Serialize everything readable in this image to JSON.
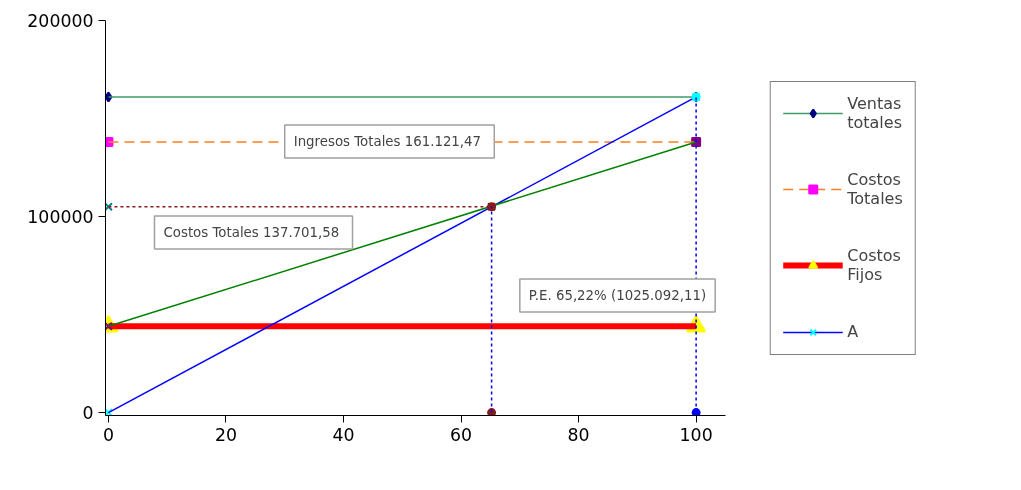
{
  "chart_data": {
    "type": "line",
    "xlim": [
      -0.5,
      105
    ],
    "ylim": [
      -1500,
      200000
    ],
    "xticks": [
      0,
      20,
      40,
      60,
      80,
      100
    ],
    "yticks": [
      0,
      100000,
      200000
    ],
    "grid": false,
    "legend": "right",
    "series": [
      {
        "name": "Ventas totales",
        "color": "#3c9c6c",
        "x": [
          0,
          100
        ],
        "values": [
          161000,
          161000
        ],
        "marker": "diamond",
        "colors": [
          "#000080",
          "#000080"
        ]
      },
      {
        "name": "Costos Totales",
        "color": "#ff8020",
        "x": [
          0,
          100
        ],
        "values": [
          138000,
          138000
        ],
        "marker": "square",
        "line_style": "dashed",
        "colors": [
          "#ff00ff",
          "#800080"
        ]
      },
      {
        "name": "Costos Fijos",
        "color": "#ff0000",
        "x": [
          0,
          100
        ],
        "values": [
          44000,
          44000
        ],
        "marker": "triangle",
        "colors": [
          "#ffff00",
          "#ffff00"
        ]
      },
      {
        "name": "A",
        "color": "#0000ff",
        "x": [
          0,
          100
        ],
        "values": [
          0,
          161000
        ],
        "marker": "cross",
        "colors": [
          "#00ffff",
          "#00ffff"
        ]
      },
      {
        "color": "#008000",
        "x": [
          0,
          100
        ],
        "values": [
          44000,
          138000
        ],
        "marker": "cross",
        "colors": [
          "#800080",
          "#800080"
        ]
      },
      {
        "color": "#8b1a1a",
        "x": [
          0,
          65.2
        ],
        "values": [
          105000,
          105000
        ],
        "marker": "cross",
        "line_style": "dotted",
        "colors": [
          "#008080",
          "#8b1a1a"
        ]
      },
      {
        "color": "#0000ff",
        "x": [
          65.2,
          65.2
        ],
        "values": [
          0,
          105000
        ],
        "marker": "circle",
        "line_style": "dotted",
        "colors": [
          "#8b1a1a",
          "#8b1a1a"
        ]
      },
      {
        "color": "#0000ff",
        "x": [
          100,
          100
        ],
        "values": [
          0,
          161000
        ],
        "marker": "circle",
        "line_style": "dotted",
        "colors": [
          "#0000ff",
          "#00ffff"
        ]
      }
    ],
    "annotations": [
      "Ingresos Totales  161.121,47",
      "Costos Totales  137.701,58",
      "P.E. 65,22% (1025.092,11)"
    ]
  }
}
